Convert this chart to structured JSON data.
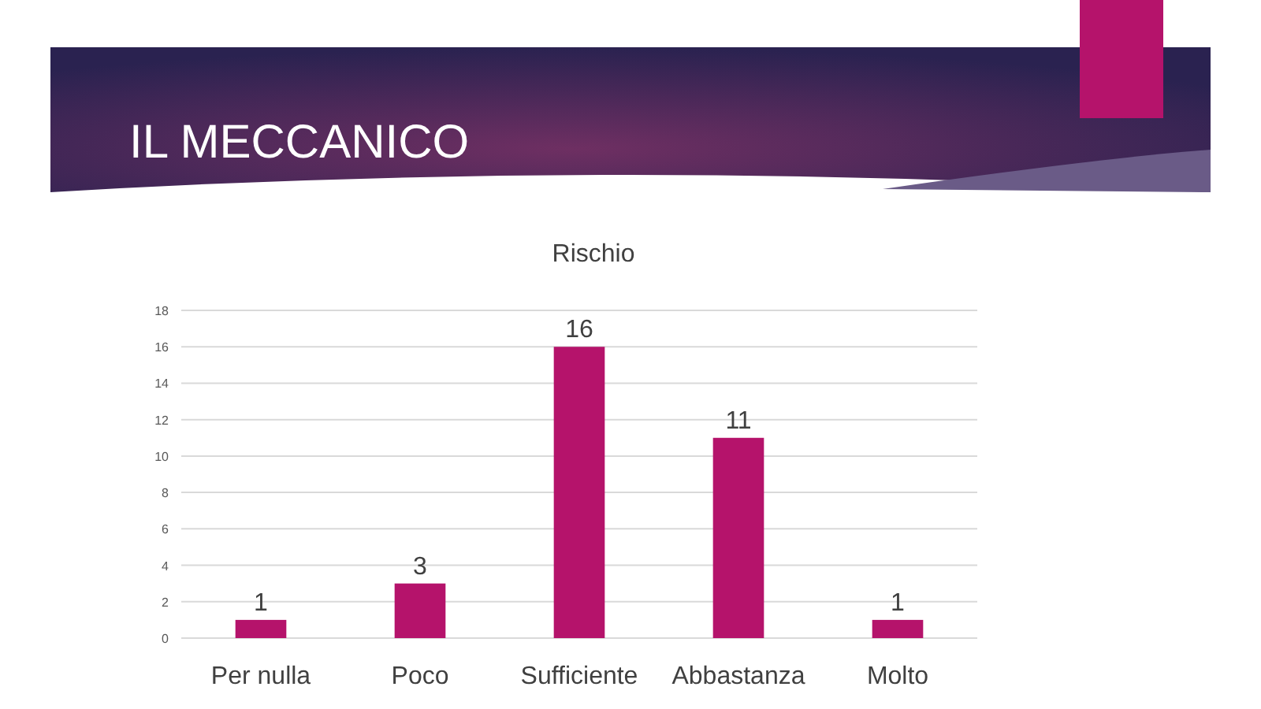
{
  "chart_data": {
    "type": "bar",
    "title": "IL MECCANICO",
    "subtitle": "Rischio",
    "categories": [
      "Per nulla",
      "Poco",
      "Sufficiente",
      "Abbastanza",
      "Molto"
    ],
    "values": [
      1,
      3,
      16,
      11,
      1
    ],
    "color": "#b5136b",
    "ylim": [
      0,
      18
    ],
    "yticks": [
      0,
      2,
      4,
      6,
      8,
      10,
      12,
      14,
      16,
      18
    ],
    "grid": "y",
    "data_labels": true
  }
}
